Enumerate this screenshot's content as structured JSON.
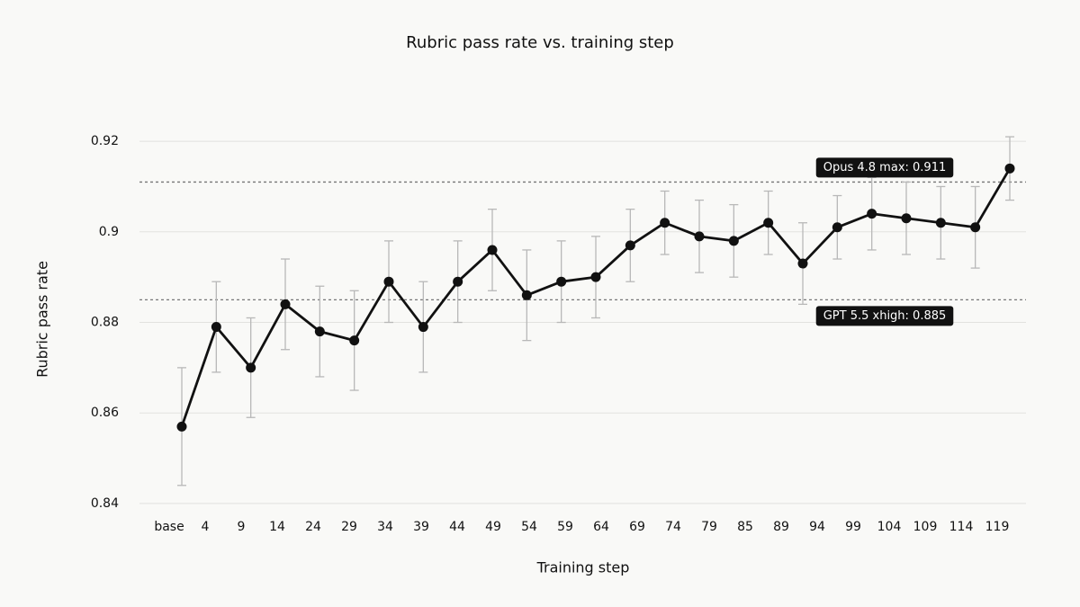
{
  "chart_data": {
    "type": "line",
    "title": "Rubric pass rate vs. training step",
    "xlabel": "Training step",
    "ylabel": "Rubric pass rate",
    "categories": [
      "base",
      "4",
      "9",
      "14",
      "24",
      "29",
      "34",
      "39",
      "44",
      "49",
      "54",
      "59",
      "64",
      "69",
      "74",
      "79",
      "85",
      "89",
      "94",
      "99",
      "104",
      "109",
      "114",
      "119",
      null
    ],
    "values": [
      0.857,
      0.879,
      0.87,
      0.884,
      0.878,
      0.876,
      0.889,
      0.879,
      0.889,
      0.896,
      0.886,
      0.889,
      0.89,
      0.897,
      0.902,
      0.899,
      0.898,
      0.902,
      0.893,
      0.901,
      0.904,
      0.903,
      0.902,
      0.901,
      0.914
    ],
    "errors": [
      0.013,
      0.01,
      0.011,
      0.01,
      0.01,
      0.011,
      0.009,
      0.01,
      0.009,
      0.009,
      0.01,
      0.009,
      0.009,
      0.008,
      0.007,
      0.008,
      0.008,
      0.007,
      0.009,
      0.007,
      0.008,
      0.008,
      0.008,
      0.009,
      0.007
    ],
    "color": "#111111",
    "ylim": [
      0.838,
      0.923
    ],
    "yticks": [
      0.84,
      0.86,
      0.88,
      0.9,
      0.92
    ],
    "grid": true,
    "reference_lines": [
      {
        "value": 0.911,
        "label": "Opus 4.8 max: 0.911"
      },
      {
        "value": 0.885,
        "label": "GPT 5.5 xhigh: 0.885"
      }
    ]
  }
}
